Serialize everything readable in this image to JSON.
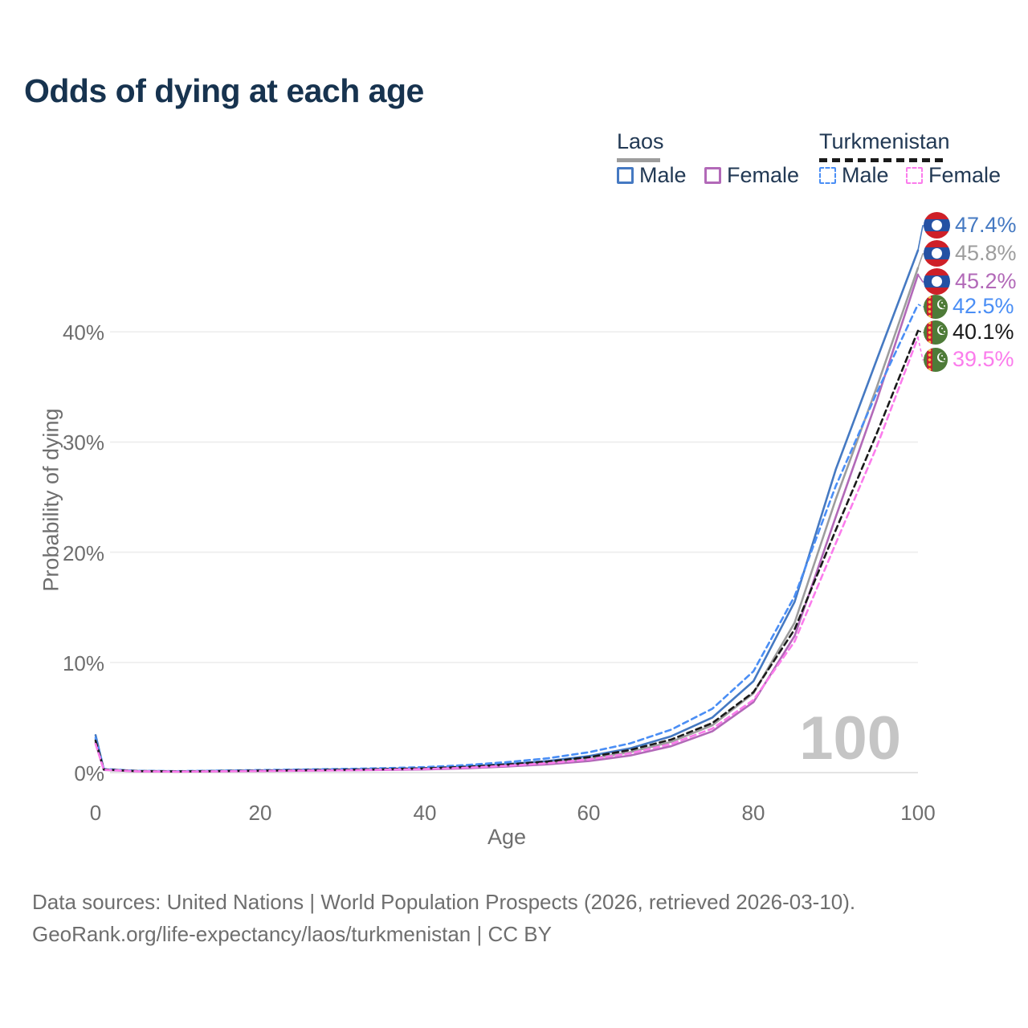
{
  "title": "Odds of dying at each age",
  "watermark": "100",
  "legend": {
    "groups": [
      {
        "name": "Laos",
        "line_style": "solid",
        "line_color": "#9d9d9d",
        "items": [
          {
            "label": "Male",
            "color": "#4579c2",
            "style": "solid"
          },
          {
            "label": "Female",
            "color": "#b269b8",
            "style": "solid"
          }
        ]
      },
      {
        "name": "Turkmenistan",
        "line_style": "dashed",
        "line_color": "#1a1a1a",
        "items": [
          {
            "label": "Male",
            "color": "#4a8ef5",
            "style": "dashed"
          },
          {
            "label": "Female",
            "color": "#fb7cec",
            "style": "dashed"
          }
        ]
      }
    ]
  },
  "chart_data": {
    "type": "line",
    "title": "Odds of dying at each age",
    "xlabel": "Age",
    "ylabel": "Probability of dying",
    "x_ticks": [
      "0",
      "20",
      "40",
      "60",
      "80",
      "100"
    ],
    "y_ticks": [
      "0%",
      "10%",
      "20%",
      "30%",
      "40%"
    ],
    "xlim": [
      0,
      100
    ],
    "ylim": [
      0,
      48.5
    ],
    "grid": "horizontal",
    "legend_position": "top-right",
    "x": [
      0,
      1,
      5,
      10,
      15,
      20,
      25,
      30,
      35,
      40,
      45,
      50,
      55,
      60,
      65,
      70,
      75,
      80,
      85,
      90,
      95,
      100
    ],
    "series": [
      {
        "name": "Laos Male",
        "color": "#4579c2",
        "dash": "solid",
        "flag": "laos",
        "end_label": "47.4%",
        "values": [
          3.4,
          0.3,
          0.15,
          0.12,
          0.16,
          0.2,
          0.24,
          0.28,
          0.33,
          0.4,
          0.55,
          0.78,
          1.05,
          1.5,
          2.2,
          3.3,
          5.0,
          8.3,
          15.5,
          27.5,
          37.5,
          47.4
        ]
      },
      {
        "name": "Laos Both sexes",
        "color": "#9d9d9d",
        "dash": "solid",
        "flag": "laos",
        "end_label": "45.8%",
        "values": [
          3.0,
          0.27,
          0.13,
          0.1,
          0.13,
          0.17,
          0.2,
          0.24,
          0.28,
          0.34,
          0.46,
          0.65,
          0.88,
          1.25,
          1.85,
          2.8,
          4.3,
          7.2,
          13.6,
          24.8,
          35.0,
          45.8
        ]
      },
      {
        "name": "Laos Female",
        "color": "#b269b8",
        "dash": "solid",
        "flag": "laos",
        "end_label": "45.2%",
        "values": [
          2.7,
          0.24,
          0.11,
          0.09,
          0.11,
          0.14,
          0.17,
          0.2,
          0.24,
          0.29,
          0.39,
          0.55,
          0.75,
          1.05,
          1.55,
          2.4,
          3.75,
          6.4,
          12.4,
          23.2,
          33.8,
          45.2
        ]
      },
      {
        "name": "Turkmenistan Male",
        "color": "#4a8ef5",
        "dash": "dashed",
        "flag": "turkmenistan",
        "end_label": "42.5%",
        "values": [
          3.15,
          0.33,
          0.16,
          0.13,
          0.18,
          0.23,
          0.28,
          0.33,
          0.4,
          0.5,
          0.68,
          0.95,
          1.3,
          1.85,
          2.65,
          3.9,
          5.8,
          9.2,
          16.0,
          26.0,
          34.5,
          42.5
        ]
      },
      {
        "name": "Turkmenistan Both sexes",
        "color": "#1a1a1a",
        "dash": "dashed",
        "flag": "turkmenistan",
        "end_label": "40.1%",
        "values": [
          2.9,
          0.29,
          0.14,
          0.11,
          0.14,
          0.18,
          0.22,
          0.26,
          0.31,
          0.38,
          0.52,
          0.73,
          1.0,
          1.4,
          2.05,
          3.0,
          4.5,
          7.3,
          13.0,
          22.0,
          30.8,
          40.1
        ]
      },
      {
        "name": "Turkmenistan Female",
        "color": "#fb7cec",
        "dash": "dashed",
        "flag": "turkmenistan",
        "end_label": "39.5%",
        "values": [
          2.6,
          0.26,
          0.12,
          0.09,
          0.12,
          0.15,
          0.18,
          0.21,
          0.26,
          0.32,
          0.44,
          0.62,
          0.85,
          1.2,
          1.75,
          2.6,
          4.0,
          6.6,
          11.9,
          20.8,
          29.6,
          39.5
        ]
      }
    ]
  },
  "footer": {
    "line1": "Data sources: United Nations | World Population Prospects (2026, retrieved 2026-03-10).",
    "line2": "GeoRank.org/life-expectancy/laos/turkmenistan | CC BY"
  }
}
